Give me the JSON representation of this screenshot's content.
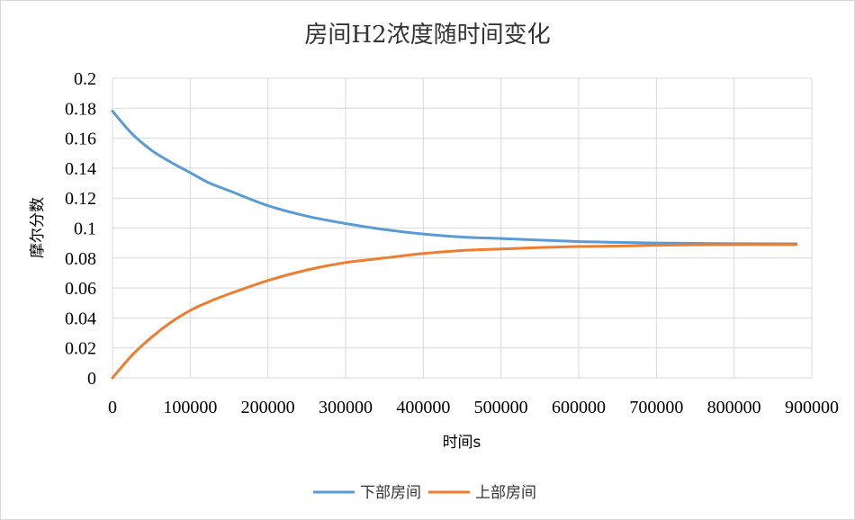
{
  "chart_data": {
    "type": "line",
    "title": "房间H2浓度随时间变化",
    "xlabel": "时间s",
    "ylabel": "摩尔分数",
    "xlim": [
      0,
      900000
    ],
    "ylim": [
      0,
      0.2
    ],
    "x_ticks": [
      "0",
      "100000",
      "200000",
      "300000",
      "400000",
      "500000",
      "600000",
      "700000",
      "800000",
      "900000"
    ],
    "y_ticks": [
      "0",
      "0.02",
      "0.04",
      "0.06",
      "0.08",
      "0.1",
      "0.12",
      "0.14",
      "0.16",
      "0.18",
      "0.2"
    ],
    "x_tick_values": [
      0,
      100000,
      200000,
      300000,
      400000,
      500000,
      600000,
      700000,
      800000,
      900000
    ],
    "y_tick_values": [
      0,
      0.02,
      0.04,
      0.06,
      0.08,
      0.1,
      0.12,
      0.14,
      0.16,
      0.18,
      0.2
    ],
    "grid": true,
    "legend_position": "bottom",
    "x": [
      0,
      25000,
      50000,
      75000,
      100000,
      125000,
      150000,
      200000,
      250000,
      300000,
      350000,
      400000,
      450000,
      500000,
      550000,
      600000,
      650000,
      700000,
      750000,
      800000,
      850000,
      880000
    ],
    "series": [
      {
        "name": "下部房间",
        "color": "#5b9bd5",
        "values": [
          0.178,
          0.163,
          0.152,
          0.144,
          0.137,
          0.13,
          0.125,
          0.115,
          0.108,
          0.103,
          0.099,
          0.096,
          0.094,
          0.093,
          0.092,
          0.091,
          0.0905,
          0.09,
          0.0898,
          0.0896,
          0.0895,
          0.0895
        ]
      },
      {
        "name": "上部房间",
        "color": "#ed7d31",
        "values": [
          0.0,
          0.015,
          0.027,
          0.037,
          0.045,
          0.051,
          0.056,
          0.065,
          0.072,
          0.077,
          0.08,
          0.083,
          0.085,
          0.086,
          0.087,
          0.0877,
          0.088,
          0.0885,
          0.0888,
          0.089,
          0.089,
          0.089
        ]
      }
    ]
  }
}
